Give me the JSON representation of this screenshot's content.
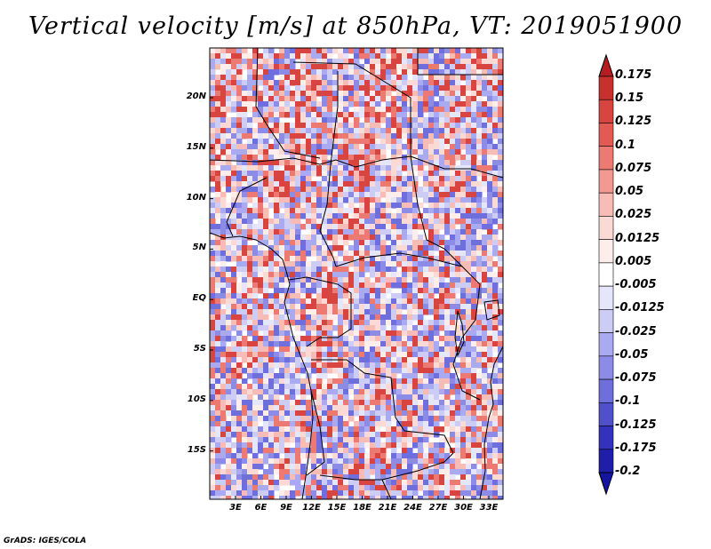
{
  "title": "Vertical velocity [m/s] at 850hPa, VT: 2019051900",
  "credit": "GrADS: IGES/COLA",
  "map": {
    "variable": "Vertical velocity",
    "units": "m/s",
    "level": "850hPa",
    "valid_time": "2019051900",
    "region": "Central Africa",
    "lat_labels": [
      "20N",
      "15N",
      "10N",
      "5N",
      "EQ",
      "5S",
      "10S",
      "15S"
    ],
    "lon_labels": [
      "3E",
      "6E",
      "9E",
      "12E",
      "15E",
      "18E",
      "21E",
      "24E",
      "27E",
      "30E",
      "33E"
    ]
  },
  "colorbar": {
    "levels": [
      "0.175",
      "0.15",
      "0.125",
      "0.1",
      "0.075",
      "0.05",
      "0.025",
      "0.0125",
      "0.005",
      "-0.005",
      "-0.0125",
      "-0.025",
      "-0.05",
      "-0.075",
      "-0.1",
      "-0.125",
      "-0.175",
      "-0.2"
    ],
    "colors": [
      "#b41e22",
      "#c8302e",
      "#d84440",
      "#e35a55",
      "#ec7a72",
      "#f29a92",
      "#f7bcb6",
      "#fbdad6",
      "#fdeeec",
      "#ffffff",
      "#e6e6fa",
      "#ccccf5",
      "#aaaaf0",
      "#8c8ce6",
      "#6e6edc",
      "#5050cd",
      "#3232be",
      "#1e1eaa",
      "#1414a0"
    ]
  }
}
